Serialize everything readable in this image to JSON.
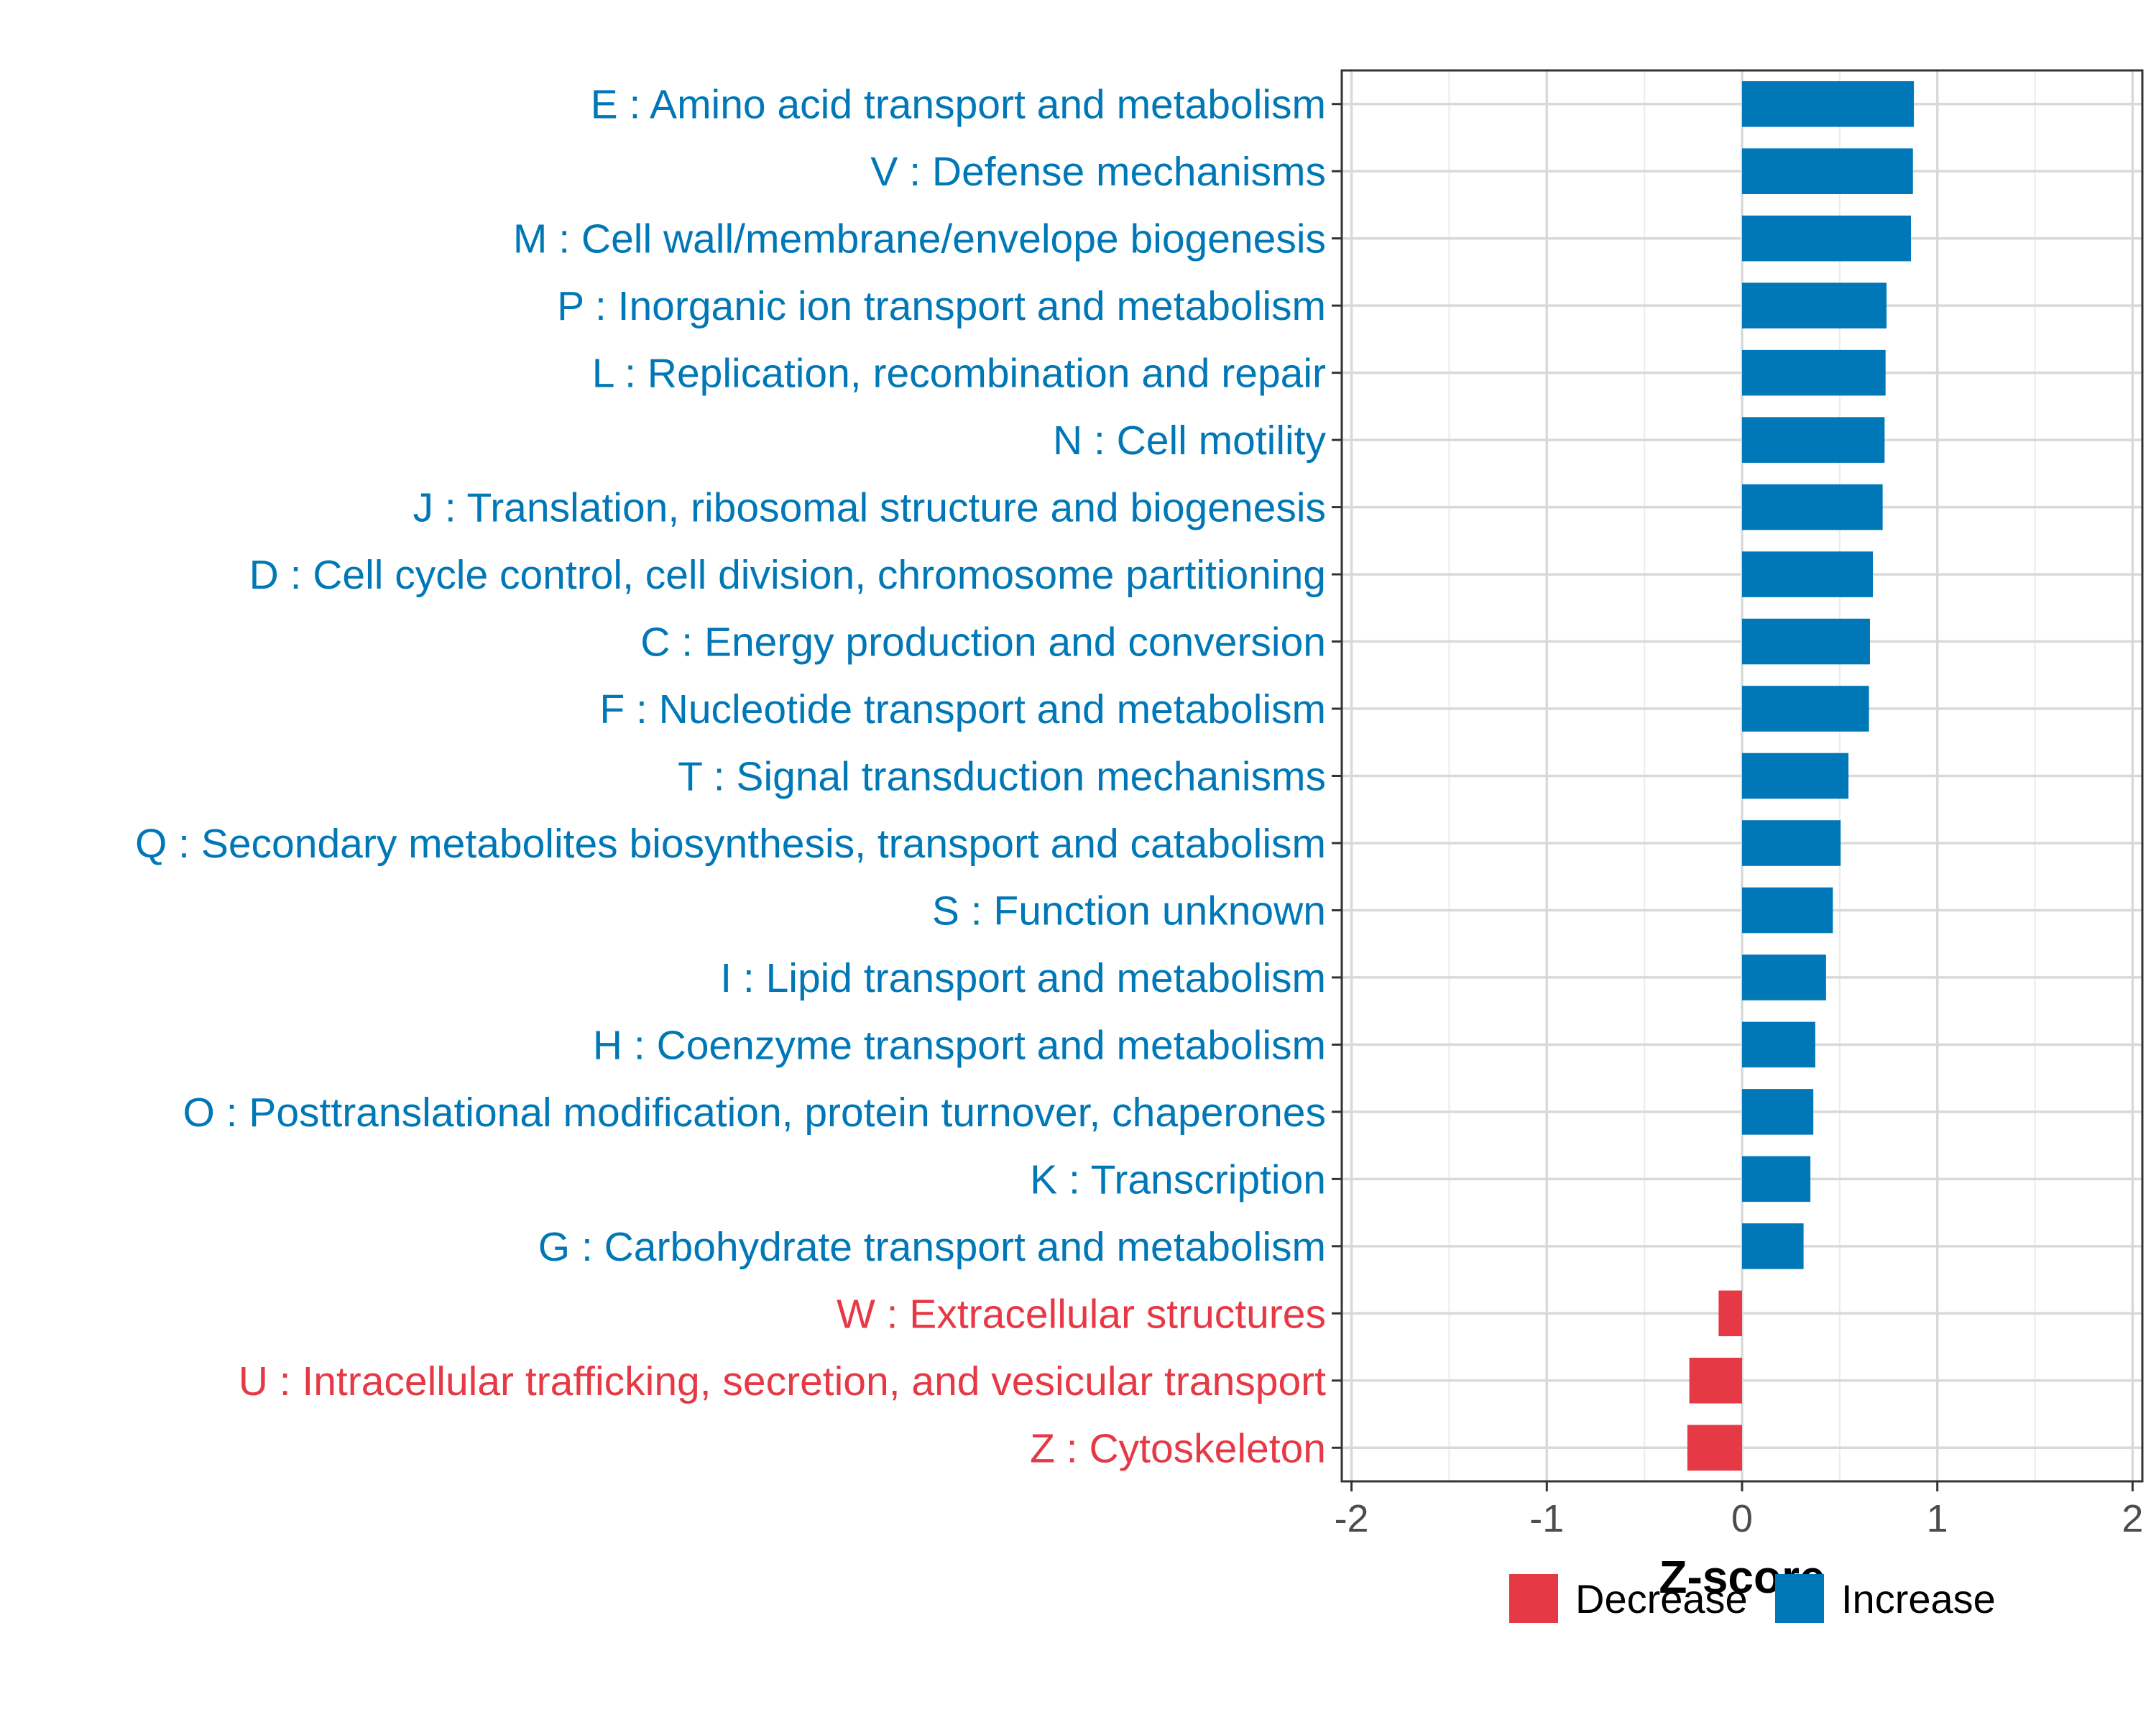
{
  "chart_data": {
    "type": "bar",
    "orientation": "horizontal",
    "title": "",
    "xlabel": "Z-score",
    "ylabel": "",
    "xlim": [
      -2.05,
      2.05
    ],
    "xticks": [
      -2,
      -1,
      0,
      1,
      2
    ],
    "xtick_labels": [
      "-2",
      "-1",
      "0",
      "1",
      "2"
    ],
    "grid": true,
    "legend": {
      "position": "bottom",
      "entries": [
        {
          "label": "Decrease",
          "color": "#E63946"
        },
        {
          "label": "Increase",
          "color": "#0077B6"
        }
      ]
    },
    "colors": {
      "Decrease": "#E63946",
      "Increase": "#0077B6"
    },
    "categories": [
      "E : Amino acid transport and metabolism",
      "V : Defense mechanisms",
      "M : Cell wall/membrane/envelope biogenesis",
      "P : Inorganic ion transport and metabolism",
      "L : Replication, recombination and repair",
      "N : Cell motility",
      "J : Translation, ribosomal structure and biogenesis",
      "D : Cell cycle control, cell division, chromosome partitioning",
      "C : Energy production and conversion",
      "F : Nucleotide transport and metabolism",
      "T : Signal transduction mechanisms",
      "Q : Secondary metabolites biosynthesis, transport and catabolism",
      "S : Function unknown",
      "I : Lipid transport and metabolism",
      "H : Coenzyme transport and metabolism",
      "O : Posttranslational modification, protein turnover, chaperones",
      "K : Transcription",
      "G : Carbohydrate transport and metabolism",
      "W : Extracellular structures",
      "U : Intracellular trafficking, secretion, and vesicular transport",
      "Z : Cytoskeleton"
    ],
    "values": [
      0.88,
      0.875,
      0.865,
      0.74,
      0.735,
      0.73,
      0.72,
      0.67,
      0.655,
      0.65,
      0.545,
      0.505,
      0.465,
      0.43,
      0.375,
      0.365,
      0.35,
      0.315,
      -0.12,
      -0.27,
      -0.28
    ],
    "groups": [
      "Increase",
      "Increase",
      "Increase",
      "Increase",
      "Increase",
      "Increase",
      "Increase",
      "Increase",
      "Increase",
      "Increase",
      "Increase",
      "Increase",
      "Increase",
      "Increase",
      "Increase",
      "Increase",
      "Increase",
      "Increase",
      "Decrease",
      "Decrease",
      "Decrease"
    ]
  }
}
